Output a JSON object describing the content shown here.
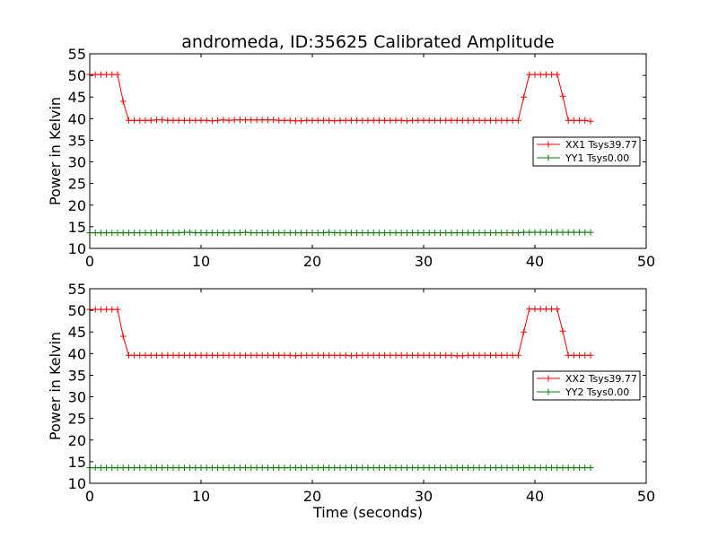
{
  "figure": {
    "title": "andromeda, ID:35625 Calibrated Amplitude",
    "xlabel": "Time (seconds)"
  },
  "colors": {
    "red": "#ff0000",
    "green": "#008000"
  },
  "chart_data": [
    {
      "type": "line",
      "title": "andromeda, ID:35625 Calibrated Amplitude",
      "xlabel": "",
      "ylabel": "Power in Kelvin",
      "xlim": [
        0,
        50
      ],
      "ylim": [
        10,
        55
      ],
      "xticks": [
        0,
        10,
        20,
        30,
        40,
        50
      ],
      "yticks": [
        10,
        15,
        20,
        25,
        30,
        35,
        40,
        45,
        50,
        55
      ],
      "grid": false,
      "legend_position": "right",
      "sample_interval": 0.5,
      "series": [
        {
          "name": "XX1 Tsys39.77",
          "color": "#ff0000",
          "marker": "+",
          "x_start": 0,
          "values": [
            50.2,
            50.2,
            50.2,
            50.2,
            50.2,
            50.2,
            44.0,
            39.6,
            39.6,
            39.6,
            39.6,
            39.6,
            39.7,
            39.7,
            39.6,
            39.6,
            39.6,
            39.6,
            39.6,
            39.6,
            39.6,
            39.6,
            39.5,
            39.6,
            39.7,
            39.6,
            39.7,
            39.7,
            39.7,
            39.7,
            39.7,
            39.7,
            39.7,
            39.7,
            39.6,
            39.6,
            39.6,
            39.5,
            39.5,
            39.6,
            39.6,
            39.6,
            39.6,
            39.6,
            39.5,
            39.6,
            39.6,
            39.6,
            39.6,
            39.6,
            39.6,
            39.6,
            39.6,
            39.6,
            39.6,
            39.6,
            39.6,
            39.5,
            39.6,
            39.6,
            39.6,
            39.6,
            39.6,
            39.6,
            39.6,
            39.6,
            39.6,
            39.6,
            39.6,
            39.6,
            39.6,
            39.6,
            39.6,
            39.6,
            39.6,
            39.6,
            39.6,
            39.6,
            45.0,
            50.2,
            50.2,
            50.2,
            50.2,
            50.2,
            50.2,
            45.2,
            39.6,
            39.6,
            39.6,
            39.6,
            39.4
          ]
        },
        {
          "name": "YY1 Tsys0.00",
          "color": "#008000",
          "marker": "+",
          "x_start": 0,
          "values": [
            13.6,
            13.6,
            13.6,
            13.6,
            13.6,
            13.6,
            13.6,
            13.6,
            13.6,
            13.6,
            13.6,
            13.6,
            13.6,
            13.6,
            13.6,
            13.6,
            13.6,
            13.7,
            13.7,
            13.6,
            13.6,
            13.6,
            13.6,
            13.6,
            13.6,
            13.6,
            13.6,
            13.6,
            13.7,
            13.6,
            13.6,
            13.6,
            13.6,
            13.6,
            13.6,
            13.6,
            13.6,
            13.6,
            13.6,
            13.6,
            13.6,
            13.6,
            13.6,
            13.7,
            13.6,
            13.6,
            13.6,
            13.6,
            13.6,
            13.6,
            13.6,
            13.6,
            13.6,
            13.6,
            13.6,
            13.6,
            13.6,
            13.6,
            13.6,
            13.6,
            13.6,
            13.6,
            13.6,
            13.6,
            13.6,
            13.6,
            13.6,
            13.6,
            13.6,
            13.6,
            13.6,
            13.6,
            13.6,
            13.6,
            13.6,
            13.6,
            13.6,
            13.6,
            13.7,
            13.7,
            13.7,
            13.7,
            13.7,
            13.7,
            13.7,
            13.7,
            13.7,
            13.7,
            13.7,
            13.7,
            13.7
          ]
        }
      ]
    },
    {
      "type": "line",
      "title": "",
      "xlabel": "Time (seconds)",
      "ylabel": "Power in Kelvin",
      "xlim": [
        0,
        50
      ],
      "ylim": [
        10,
        55
      ],
      "xticks": [
        0,
        10,
        20,
        30,
        40,
        50
      ],
      "yticks": [
        10,
        15,
        20,
        25,
        30,
        35,
        40,
        45,
        50,
        55
      ],
      "grid": false,
      "legend_position": "right",
      "sample_interval": 0.5,
      "series": [
        {
          "name": "XX2 Tsys39.77",
          "color": "#ff0000",
          "marker": "+",
          "x_start": 0,
          "values": [
            50.2,
            50.2,
            50.2,
            50.2,
            50.2,
            50.2,
            44.0,
            39.6,
            39.6,
            39.6,
            39.6,
            39.6,
            39.6,
            39.6,
            39.6,
            39.6,
            39.6,
            39.6,
            39.6,
            39.6,
            39.6,
            39.6,
            39.6,
            39.6,
            39.6,
            39.6,
            39.6,
            39.6,
            39.6,
            39.6,
            39.6,
            39.6,
            39.6,
            39.6,
            39.6,
            39.6,
            39.6,
            39.5,
            39.6,
            39.6,
            39.6,
            39.6,
            39.6,
            39.6,
            39.6,
            39.6,
            39.6,
            39.5,
            39.6,
            39.6,
            39.6,
            39.6,
            39.6,
            39.6,
            39.6,
            39.6,
            39.6,
            39.6,
            39.6,
            39.6,
            39.6,
            39.6,
            39.6,
            39.6,
            39.6,
            39.6,
            39.5,
            39.5,
            39.6,
            39.6,
            39.6,
            39.6,
            39.6,
            39.6,
            39.6,
            39.6,
            39.6,
            39.6,
            45.0,
            50.3,
            50.3,
            50.3,
            50.3,
            50.3,
            50.3,
            45.2,
            39.6,
            39.6,
            39.6,
            39.6,
            39.6
          ]
        },
        {
          "name": "YY2 Tsys0.00",
          "color": "#008000",
          "marker": "+",
          "x_start": 0,
          "values": [
            13.6,
            13.6,
            13.6,
            13.6,
            13.6,
            13.6,
            13.6,
            13.6,
            13.6,
            13.6,
            13.6,
            13.6,
            13.6,
            13.6,
            13.6,
            13.6,
            13.6,
            13.6,
            13.6,
            13.6,
            13.6,
            13.6,
            13.6,
            13.6,
            13.6,
            13.6,
            13.6,
            13.6,
            13.6,
            13.6,
            13.6,
            13.6,
            13.6,
            13.6,
            13.6,
            13.6,
            13.6,
            13.6,
            13.6,
            13.6,
            13.6,
            13.6,
            13.6,
            13.6,
            13.6,
            13.6,
            13.6,
            13.6,
            13.6,
            13.6,
            13.6,
            13.6,
            13.6,
            13.6,
            13.6,
            13.6,
            13.6,
            13.6,
            13.6,
            13.6,
            13.6,
            13.6,
            13.6,
            13.6,
            13.6,
            13.6,
            13.6,
            13.6,
            13.6,
            13.6,
            13.6,
            13.6,
            13.6,
            13.6,
            13.6,
            13.6,
            13.6,
            13.6,
            13.6,
            13.6,
            13.6,
            13.6,
            13.6,
            13.6,
            13.6,
            13.6,
            13.6,
            13.6,
            13.6,
            13.6,
            13.6
          ]
        }
      ]
    }
  ]
}
